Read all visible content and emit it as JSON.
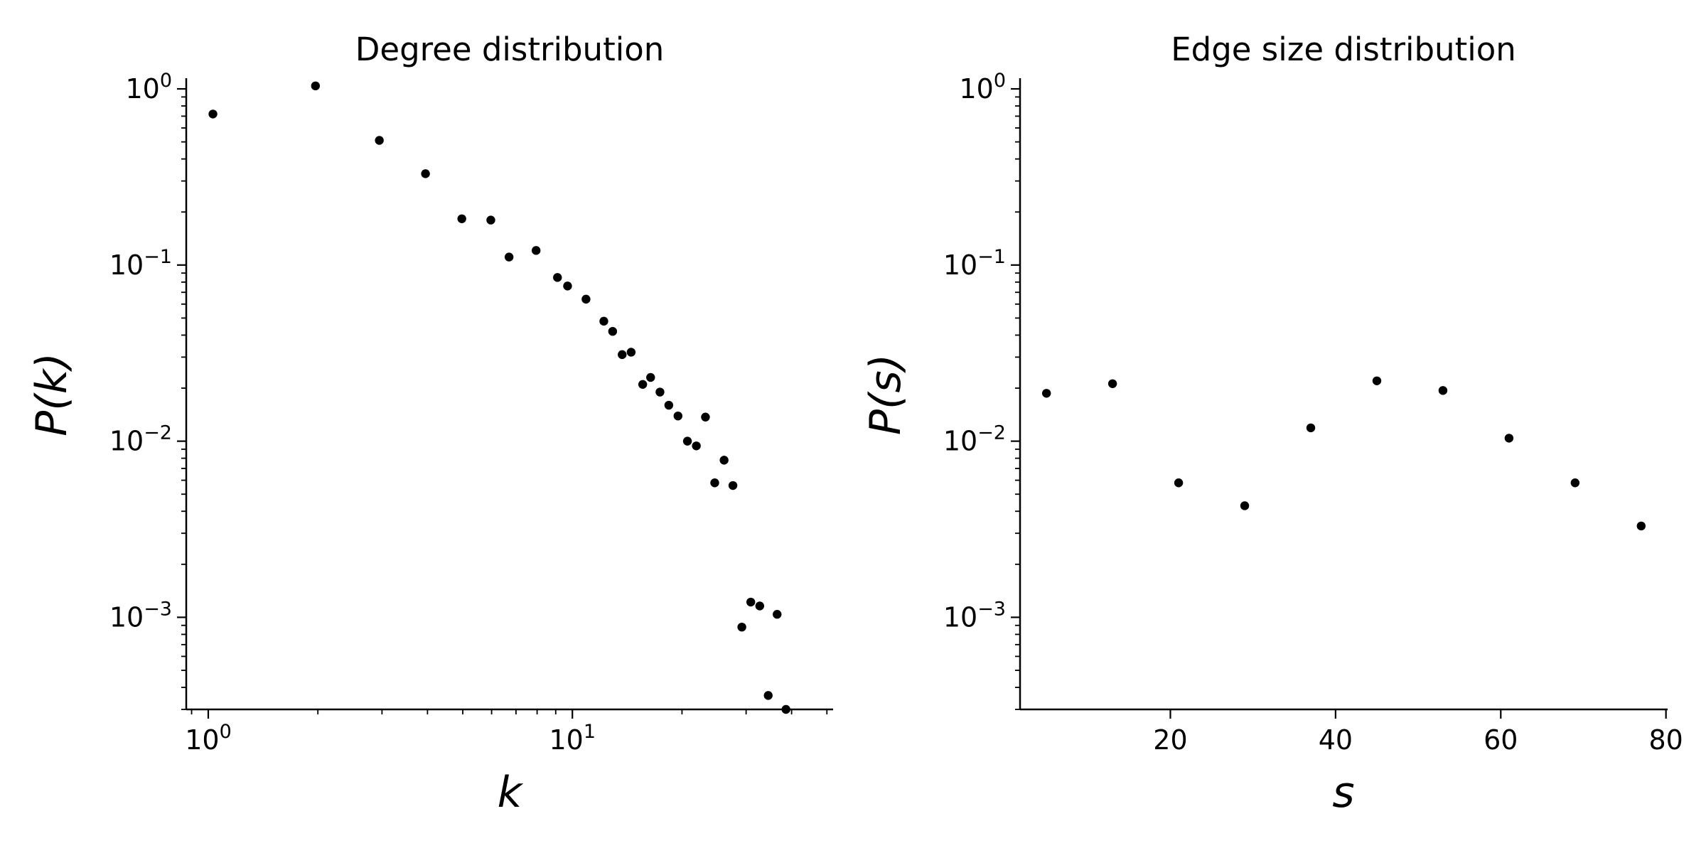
{
  "chart_data": [
    {
      "type": "scatter",
      "title": "Degree distribution",
      "xlabel": "k",
      "ylabel": "P(k)",
      "xscale": "log",
      "yscale": "log",
      "xlim": [
        0.87,
        52
      ],
      "ylim": [
        0.0003,
        1.15
      ],
      "grid": false,
      "marker_color": "#000000",
      "x_ticks": [
        {
          "base": "10",
          "exp": "0",
          "value": 1
        },
        {
          "base": "10",
          "exp": "1",
          "value": 10
        }
      ],
      "y_ticks": [
        {
          "base": "10",
          "exp": "0",
          "value": 1
        },
        {
          "base": "10",
          "exp": "−1",
          "value": 0.1
        },
        {
          "base": "10",
          "exp": "−2",
          "value": 0.01
        },
        {
          "base": "10",
          "exp": "−3",
          "value": 0.001
        }
      ],
      "points": [
        [
          1.03,
          0.72
        ],
        [
          1.97,
          1.04
        ],
        [
          2.95,
          0.51
        ],
        [
          3.95,
          0.33
        ],
        [
          4.97,
          0.183
        ],
        [
          5.97,
          0.18
        ],
        [
          6.7,
          0.111
        ],
        [
          7.95,
          0.121
        ],
        [
          9.1,
          0.085
        ],
        [
          9.7,
          0.076
        ],
        [
          10.9,
          0.064
        ],
        [
          12.2,
          0.048
        ],
        [
          12.9,
          0.042
        ],
        [
          13.7,
          0.031
        ],
        [
          14.5,
          0.032
        ],
        [
          15.6,
          0.021
        ],
        [
          16.4,
          0.023
        ],
        [
          17.4,
          0.019
        ],
        [
          18.4,
          0.016
        ],
        [
          19.5,
          0.0139
        ],
        [
          20.7,
          0.01
        ],
        [
          21.9,
          0.0094
        ],
        [
          23.2,
          0.0137
        ],
        [
          24.6,
          0.0058
        ],
        [
          26.1,
          0.0078
        ],
        [
          27.6,
          0.0056
        ],
        [
          29.2,
          0.00088
        ],
        [
          30.9,
          0.00122
        ],
        [
          32.7,
          0.00116
        ],
        [
          34.5,
          0.00036
        ],
        [
          36.5,
          0.00104
        ],
        [
          38.6,
          0.0003
        ]
      ]
    },
    {
      "type": "scatter",
      "title": "Edge size distribution",
      "xlabel": "s",
      "ylabel": "P(s)",
      "xscale": "linear",
      "yscale": "log",
      "xlim": [
        1.8,
        80.2
      ],
      "ylim": [
        0.0003,
        1.15
      ],
      "grid": false,
      "marker_color": "#000000",
      "x_ticks": [
        {
          "label": "20",
          "value": 20
        },
        {
          "label": "40",
          "value": 40
        },
        {
          "label": "60",
          "value": 60
        },
        {
          "label": "80",
          "value": 80
        }
      ],
      "y_ticks": [
        {
          "base": "10",
          "exp": "0",
          "value": 1
        },
        {
          "base": "10",
          "exp": "−1",
          "value": 0.1
        },
        {
          "base": "10",
          "exp": "−2",
          "value": 0.01
        },
        {
          "base": "10",
          "exp": "−3",
          "value": 0.001
        }
      ],
      "points": [
        [
          5,
          0.0187
        ],
        [
          13,
          0.0212
        ],
        [
          21,
          0.0058
        ],
        [
          29,
          0.0043
        ],
        [
          37,
          0.0119
        ],
        [
          45,
          0.022
        ],
        [
          53,
          0.0194
        ],
        [
          61,
          0.0104
        ],
        [
          69,
          0.0058
        ],
        [
          77,
          0.0033
        ]
      ]
    }
  ]
}
